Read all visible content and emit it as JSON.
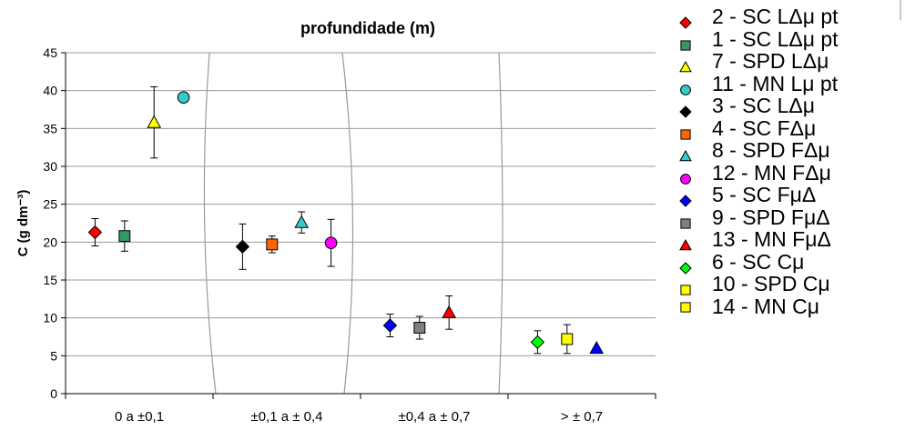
{
  "chart_data": {
    "type": "scatter",
    "title": "profundidade (m)",
    "ylabel": "C (g dm⁻³)",
    "xlabel": "",
    "ylim": [
      0,
      45
    ],
    "yticks": [
      0,
      5,
      10,
      15,
      20,
      25,
      30,
      35,
      40,
      45
    ],
    "categories": [
      "0  a  ±0,1",
      "±0,1 a ± 0,4",
      "±0,4 a ± 0,7",
      "> ± 0,7"
    ],
    "grid": "horizontal",
    "legend_position": "right",
    "series": [
      {
        "name": "2 - SC LΔμ pt",
        "marker": "diamond",
        "color": "#ff0000",
        "category": 0,
        "offset": -0.3,
        "y": 21.3,
        "err": 1.8
      },
      {
        "name": "1 - SC LΔμ pt",
        "marker": "square",
        "color": "#339966",
        "category": 0,
        "offset": -0.1,
        "y": 20.8,
        "err": 2.0
      },
      {
        "name": "7 - SPD LΔμ",
        "marker": "triangle",
        "color": "#ffff00",
        "category": 0,
        "offset": 0.1,
        "y": 35.8,
        "err": 4.7
      },
      {
        "name": "11 - MN Lμ pt",
        "marker": "circle",
        "color": "#33cccc",
        "category": 0,
        "offset": 0.3,
        "y": 39.1,
        "err": null
      },
      {
        "name": "3 - SC LΔμ",
        "marker": "circle",
        "color": "#33cccc",
        "category": null,
        "offset": null,
        "y": null,
        "err": null
      },
      {
        "name": "4 - SC FΔμ",
        "marker": "diamond",
        "color": "#000000",
        "category": 1,
        "offset": -0.3,
        "y": 19.4,
        "err": 3.0
      },
      {
        "name": "8 - SPD FΔμ",
        "marker": "square",
        "color": "#ff6600",
        "category": 1,
        "offset": -0.1,
        "y": 19.7,
        "err": 1.1
      },
      {
        "name": "12 - MN FΔμ",
        "marker": "triangle",
        "color": "#33cccc",
        "category": 1,
        "offset": 0.1,
        "y": 22.6,
        "err": 1.4
      },
      {
        "name": "5 - SC FμΔ",
        "marker": "circle",
        "color": "#ff00ff",
        "category": 1,
        "offset": 0.3,
        "y": 19.9,
        "err": 3.1
      },
      {
        "name": "9 - SPD FμΔ",
        "marker": "diamond",
        "color": "#0000ff",
        "category": 2,
        "offset": -0.3,
        "y": 9.0,
        "err": 1.5
      },
      {
        "name": "13 - MN FμΔ",
        "marker": "square",
        "color": "#808080",
        "category": 2,
        "offset": -0.1,
        "y": 8.7,
        "err": 1.5
      },
      {
        "name": "6 - SC Cμ",
        "marker": "triangle",
        "color": "#ff0000",
        "category": 2,
        "offset": 0.1,
        "y": 10.7,
        "err": 2.2
      },
      {
        "name": "10 - SPD Cμ",
        "marker": "diamond",
        "color": "#00ff00",
        "category": 3,
        "offset": -0.3,
        "y": 6.8,
        "err": 1.5
      },
      {
        "name": "14 - MN Cμ",
        "marker": "square",
        "color": "#ffff00",
        "category": 3,
        "offset": -0.1,
        "y": 7.2,
        "err": 1.9
      },
      {
        "name": "",
        "marker": "triangle",
        "color": "#0000ff",
        "category": 3,
        "offset": 0.1,
        "y": 6.0,
        "err": null
      }
    ]
  },
  "legend": {
    "items": [
      {
        "label": "2 - SC LΔμ pt",
        "marker": "diamond",
        "color": "#ff0000"
      },
      {
        "label": "1 - SC LΔμ pt",
        "marker": "square",
        "color": "#339966"
      },
      {
        "label": "7 - SPD LΔμ",
        "marker": "triangle",
        "color": "#ffff00"
      },
      {
        "label": "11 - MN Lμ pt",
        "marker": "circle",
        "color": "#33cccc"
      },
      {
        "label": "3 - SC LΔμ",
        "marker": "diamond",
        "color": "#000000"
      },
      {
        "label": "4 - SC FΔμ",
        "marker": "square",
        "color": "#ff6600"
      },
      {
        "label": "8 - SPD FΔμ",
        "marker": "triangle",
        "color": "#33cccc"
      },
      {
        "label": "12 - MN FΔμ",
        "marker": "circle",
        "color": "#ff00ff"
      },
      {
        "label": "5 - SC FμΔ",
        "marker": "diamond",
        "color": "#0000ff"
      },
      {
        "label": "9 - SPD FμΔ",
        "marker": "square",
        "color": "#808080"
      },
      {
        "label": "13 - MN FμΔ",
        "marker": "triangle",
        "color": "#ff0000"
      },
      {
        "label": "6 - SC Cμ",
        "marker": "diamond",
        "color": "#00ff00"
      },
      {
        "label": "10 - SPD Cμ",
        "marker": "square",
        "color": "#ffff00"
      },
      {
        "label": "14 - MN Cμ",
        "marker": "none",
        "color": "#ffffff"
      }
    ]
  }
}
